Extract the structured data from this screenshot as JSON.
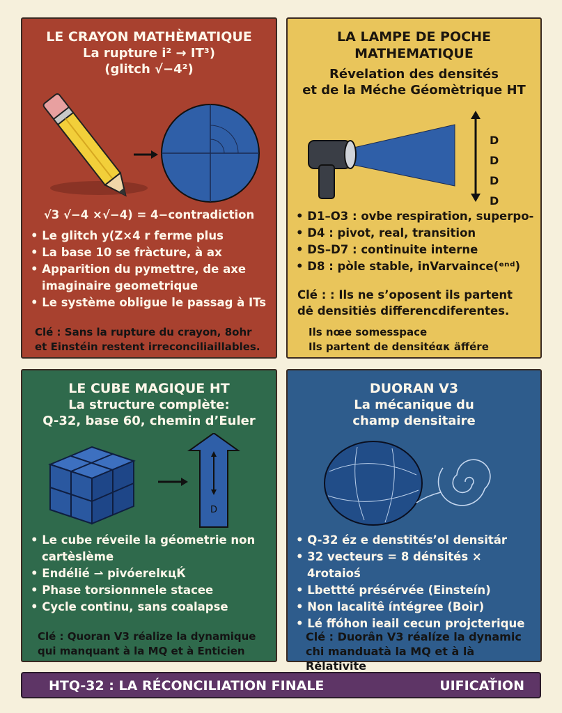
{
  "colors": {
    "background": "#f6f0dc",
    "crayon": "#a8412f",
    "lampe": "#e9c55b",
    "cube": "#2f6a4c",
    "duoran": "#2e5c8c",
    "footer": "#5e3566"
  },
  "crayon": {
    "title": "LE CRAYON MATHÈMATIQUE",
    "subtitle1": "La rupture i² → IT³)",
    "subtitle2": "(glitch √−4²)",
    "icons": [
      "pencil-icon",
      "arrow-right-icon",
      "circle-grid-icon"
    ],
    "formula": "√3  √−4 ×√−4) = 4−contradiction",
    "items": [
      "Le glitch y(Z×4 r ferme plus",
      "La base 10 se fràcture, à ax",
      "Apparition du pymettre, de  axe imaginaire geometrique",
      "Le système obligue le passag à ITs"
    ],
    "key1": "Clé : Sans la rupture du crayon, 8ohr",
    "key2": "et Einstéin restent irreconciliaillables."
  },
  "lampe": {
    "title1": "LA LAMPE DE POCHE",
    "title2": "MATHEMATIQUE",
    "subtitle1": "Révelation des densités",
    "subtitle2": "et de la Méche Géomètrique HT",
    "icons": [
      "flashlight-icon",
      "light-beam-icon",
      "double-arrow-vertical-icon"
    ],
    "d_labels": [
      "D",
      "D",
      "D",
      "D"
    ],
    "items": [
      "D1–O3 : ovbe respiration, superpo-",
      "D4 : pivot, real, transition",
      "DS–D7 : continuite interne",
      "D8 : pòle stable, inVarvaince(ᵉⁿᵈ)"
    ],
    "key1": "Clé : : Ils ne s’oposent ils partent",
    "key2": "dė densitiės differencdiferentes.",
    "note1": "Ils nœe somesspace",
    "note2": "Ils partent de densitéακ äffére"
  },
  "cube": {
    "title": "LE CUBE MAGIQUE HT",
    "subtitle1": "La structure complète:",
    "subtitle2": "Q-32, base 60, chemin d’Euler",
    "icons": [
      "cube-icon",
      "arrow-right-icon",
      "arrow-up-box-icon"
    ],
    "d_label": "D",
    "items": [
      "Le cube réveile la géometrie non cartèslème",
      "Endélié ⇀ pivóerelкцЌ",
      "Phase torsionnnele stacee",
      "Cycle continu, sans coalapse"
    ],
    "key1": "Clé : Quoran V3 réalize la dynamique",
    "key2": "qui manquant  à la MQ et à Enticien"
  },
  "duoran": {
    "title": "DUORAN V3",
    "subtitle1": "La mécanique du",
    "subtitle2": "champ densitaire",
    "icons": [
      "sphere-field-icon",
      "spiral-icon"
    ],
    "items": [
      "Q-32 éz e denstités’ol densitár",
      "32 vecteurs = 8 dénsités × 4rotaioś",
      "Lbettté présérvée (Einsteín)",
      "Non lacalitê íntégree (Boìr)",
      "Lé ffóhon ieail cecun projcterique"
    ],
    "key1": "Clé : Duorân V3 réalíze la dynamic",
    "key2": "chi manduatà la MQ et à là Rėlativite"
  },
  "footer": {
    "title": "HTQ-32 : LA RÉCONCILIATION FINALE",
    "right": "UIFICAŤION"
  }
}
